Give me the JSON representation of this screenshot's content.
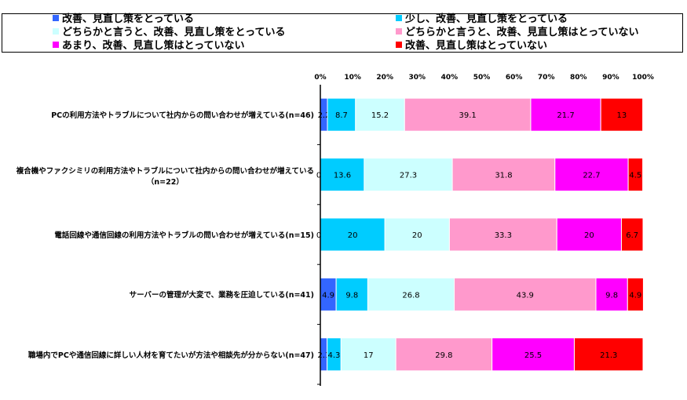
{
  "chart_data": {
    "type": "bar",
    "stacked": true,
    "orientation": "horizontal",
    "xlim": [
      0,
      100
    ],
    "ticks": [
      "0%",
      "10%",
      "20%",
      "30%",
      "40%",
      "50%",
      "60%",
      "70%",
      "80%",
      "90%",
      "100%"
    ],
    "categories": [
      "PCの利用方法やトラブルについて社内からの問い合わせが増えている(n=46)",
      "複合機やファクシミリの利用方法やトラブルについて社内からの問い合わせが増えている\n（n=22）",
      "電話回線や通信回線の利用方法やトラブルの問い合わせが増えている(n=15)",
      "サーバーの管理が大変で、業務を圧迫している(n=41)",
      "職場内でPCや通信回線に詳しい人材を育てたいが方法や相談先が分からない(n=47)"
    ],
    "series": [
      {
        "name": "改善、見直し策をとっている",
        "color": "#3366ff",
        "values": [
          2.2,
          0,
          0,
          4.9,
          2.1
        ]
      },
      {
        "name": "少し、改善、見直し策をとっている",
        "color": "#00ccff",
        "values": [
          8.7,
          13.6,
          20,
          9.8,
          4.3
        ]
      },
      {
        "name": "どちらかと言うと、改善、見直し策をとっている",
        "color": "#ccffff",
        "values": [
          15.2,
          27.3,
          20,
          26.8,
          17
        ]
      },
      {
        "name": "どちらかと言うと、改善、見直し策はとっていない",
        "color": "#ff99cc",
        "values": [
          39.1,
          31.8,
          33.3,
          43.9,
          29.8
        ]
      },
      {
        "name": "あまり、改善、見直し策はとっていない",
        "color": "#ff00ff",
        "values": [
          21.7,
          22.7,
          20,
          9.8,
          25.5
        ]
      },
      {
        "name": "改善、見直し策はとっていない",
        "color": "#ff0000",
        "values": [
          13,
          4.5,
          6.7,
          4.9,
          21.3
        ]
      }
    ],
    "legend": "top"
  }
}
